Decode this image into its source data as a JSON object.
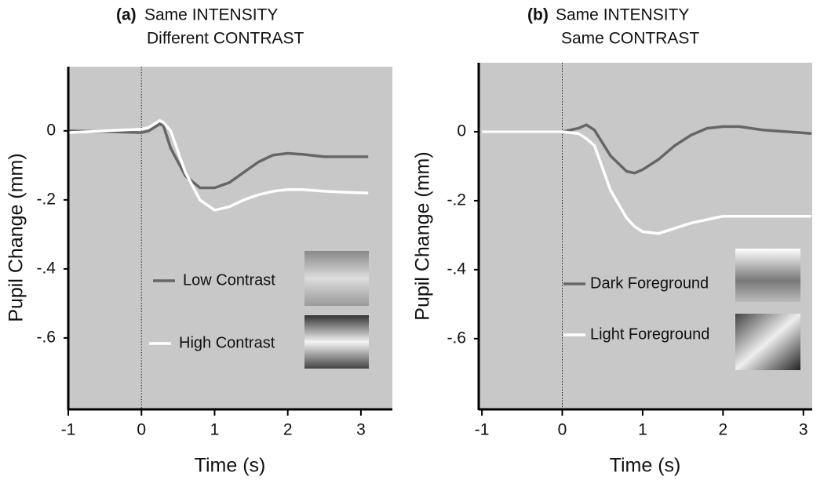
{
  "chart_data": [
    {
      "type": "line",
      "panel_label": "(a)",
      "title": [
        "Same INTENSITY",
        "Different CONTRAST"
      ],
      "x_label": "Time (s)",
      "y_label": "Pupil Change (mm)",
      "xlim": [
        -1,
        3.43
      ],
      "ylim": [
        -0.807,
        0.186
      ],
      "xticks": [
        -1,
        0,
        1,
        2,
        3
      ],
      "yticks": [
        {
          "value": 0,
          "label": "0"
        },
        {
          "value": -0.2,
          "label": "-.2"
        },
        {
          "value": -0.4,
          "label": "-.4"
        },
        {
          "value": -0.6,
          "label": "-.6"
        }
      ],
      "vline_x": 0,
      "background": "#c8c8c8",
      "x": [
        -1,
        -0.5,
        0,
        0.1,
        0.25,
        0.3,
        0.4,
        0.6,
        0.8,
        1.0,
        1.2,
        1.4,
        1.6,
        1.8,
        2.0,
        2.2,
        2.5,
        2.8,
        3.1
      ],
      "series": [
        {
          "name": "Low Contrast",
          "color": "#666666",
          "values": [
            0,
            -0.002,
            -0.005,
            0,
            0.02,
            0.015,
            -0.05,
            -0.13,
            -0.165,
            -0.165,
            -0.15,
            -0.12,
            -0.09,
            -0.07,
            -0.065,
            -0.068,
            -0.075,
            -0.075,
            -0.075
          ]
        },
        {
          "name": "High Contrast",
          "color": "#ffffff",
          "values": [
            -0.005,
            0,
            0.005,
            0.01,
            0.03,
            0.025,
            0,
            -0.12,
            -0.2,
            -0.23,
            -0.22,
            -0.2,
            -0.185,
            -0.175,
            -0.17,
            -0.17,
            -0.175,
            -0.178,
            -0.18
          ]
        }
      ]
    },
    {
      "type": "line",
      "panel_label": "(b)",
      "title": [
        "Same  INTENSITY",
        "Same  CONTRAST"
      ],
      "x_label": "Time (s)",
      "y_label": "Pupil Change (mm)",
      "xlim": [
        -1.04,
        3.11
      ],
      "ylim": [
        -0.805,
        0.2
      ],
      "xticks": [
        -1,
        0,
        1,
        2,
        3
      ],
      "yticks": [
        {
          "value": 0,
          "label": "0"
        },
        {
          "value": -0.2,
          "label": "-.2"
        },
        {
          "value": -0.4,
          "label": "-.4"
        },
        {
          "value": -0.6,
          "label": "-.6"
        }
      ],
      "vline_x": 0,
      "background": "#c8c8c8",
      "x": [
        -1,
        -0.5,
        0,
        0.2,
        0.3,
        0.4,
        0.6,
        0.8,
        0.9,
        1.0,
        1.2,
        1.4,
        1.6,
        1.8,
        2.0,
        2.2,
        2.5,
        2.8,
        3.1
      ],
      "series": [
        {
          "name": "Dark Foreground",
          "color": "#666666",
          "values": [
            0,
            0,
            0,
            0.01,
            0.02,
            0.005,
            -0.07,
            -0.115,
            -0.12,
            -0.11,
            -0.08,
            -0.04,
            -0.01,
            0.01,
            0.015,
            0.015,
            0.005,
            0,
            -0.005
          ]
        },
        {
          "name": "Light Foreground",
          "color": "#ffffff",
          "values": [
            0,
            0,
            0,
            -0.005,
            -0.02,
            -0.04,
            -0.17,
            -0.25,
            -0.275,
            -0.29,
            -0.295,
            -0.28,
            -0.265,
            -0.255,
            -0.245,
            -0.245,
            -0.245,
            -0.245,
            -0.245
          ]
        }
      ]
    }
  ]
}
